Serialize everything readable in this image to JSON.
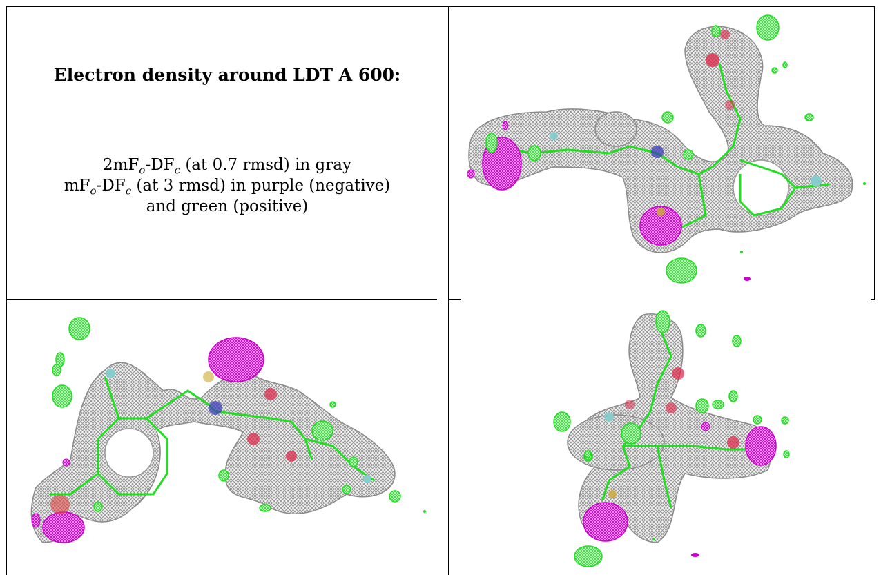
{
  "caption": {
    "title": "Electron density around LDT A 600:",
    "line1": {
      "pre": "2mF",
      "sub_o": "o",
      "mid": "-DF",
      "sub_c": "c",
      "post": " (at 0.7 rmsd) in gray"
    },
    "line2": {
      "pre": "mF",
      "sub_o": "o",
      "mid": "-DF",
      "sub_c": "c",
      "post": " (at 3 rmsd) in purple (negative)"
    },
    "line3": "and green (positive)"
  },
  "colors": {
    "density_gray": "#9a9a9a",
    "difference_negative": "#cc00cc",
    "difference_positive": "#22dd22",
    "oxygen": "#dd2244",
    "nitrogen": "#3333bb",
    "fluorine": "#88cccc",
    "sulfur": "#ccaa33"
  },
  "panels": [
    {
      "id": "view-top-right",
      "description_icon": "electron-density-map"
    },
    {
      "id": "view-bottom-left",
      "description_icon": "electron-density-map"
    },
    {
      "id": "view-bottom-right",
      "description_icon": "electron-density-map"
    }
  ]
}
